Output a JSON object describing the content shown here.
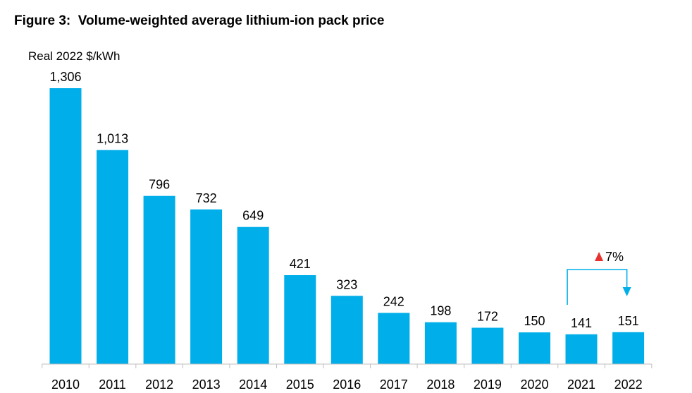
{
  "chart_data": {
    "type": "bar",
    "title": "Figure 3:  Volume-weighted average lithium-ion pack price",
    "ylabel": "Real 2022 $/kWh",
    "xlabel": "",
    "categories": [
      "2010",
      "2011",
      "2012",
      "2013",
      "2014",
      "2015",
      "2016",
      "2017",
      "2018",
      "2019",
      "2020",
      "2021",
      "2022"
    ],
    "values": [
      1306,
      1013,
      796,
      732,
      649,
      421,
      323,
      242,
      198,
      172,
      150,
      141,
      151
    ],
    "data_labels": [
      "1,306",
      "1,013",
      "796",
      "732",
      "649",
      "421",
      "323",
      "242",
      "198",
      "172",
      "150",
      "141",
      "151"
    ],
    "ylim": [
      0,
      1306
    ],
    "grid": false,
    "legend": "none",
    "annotations": [
      {
        "text": "7%",
        "marker": "up-triangle",
        "from": "2021",
        "to": "2022",
        "direction": "increase"
      }
    ],
    "colors": {
      "bar": "#00aee9",
      "arrow": "#00aee9",
      "triangle": "#e8312f",
      "axis": "#bfbfbf"
    }
  }
}
